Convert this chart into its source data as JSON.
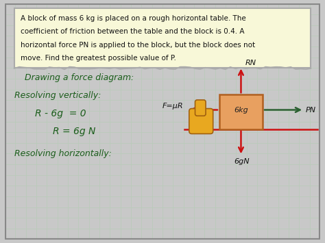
{
  "outer_bg": "#c8c8c8",
  "canvas_bg": "#e8ebe8",
  "grid_color": "#b8ccb8",
  "problem_box_color": "#f8f8d8",
  "problem_box_border": "#aaaaaa",
  "problem_text_line1": "A block of mass 6 kg is placed on a rough horizontal table. The",
  "problem_text_line2": "coefficient of friction between the table and the block is 0.4. A",
  "problem_text_line3": "horizontal force PN is applied to the block, but the block does not",
  "problem_text_line4": "move. Find the greatest possible value of P.",
  "hw_color": "#1a5c1a",
  "label1": "Drawing a force diagram:",
  "label2": "Resolving vertically:",
  "label3": "R - 6g  = 0",
  "label4": "R = 6g N",
  "label5": "Resolving horizontally:",
  "block_fill": "#e8a060",
  "block_edge": "#b06020",
  "block_label": "6kg",
  "block_label_color": "#222222",
  "arrow_green": "#2a6030",
  "arrow_red": "#cc1111",
  "line_red": "#cc1111",
  "rn_label": "RN",
  "pn_label": "PN",
  "fn_label": "F=μR",
  "wt_label": "6gN",
  "cursor_fill": "#e8a820",
  "cursor_edge": "#a06010",
  "label_color": "#222222"
}
